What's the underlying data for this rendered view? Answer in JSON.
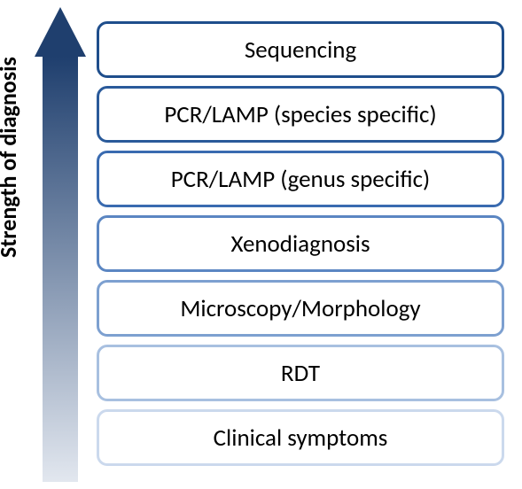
{
  "diagram": {
    "type": "infographic",
    "axis_label": "Strength of diagnosis",
    "axis_font_size": 26,
    "axis_font_weight": "bold",
    "arrow": {
      "head_height": 56,
      "body_height": 480,
      "gradient_top": "#1f3f6e",
      "gradient_bottom": "#e2e7ef"
    },
    "box_font_size": 27,
    "box_font_weight": "400",
    "box_border_width": 3,
    "box_border_radius": 12,
    "boxes": [
      {
        "label": "Sequencing",
        "border_color": "#1f4e8c"
      },
      {
        "label": "PCR/LAMP (species specific)",
        "border_color": "#2a5a9a"
      },
      {
        "label": "PCR/LAMP (genus specific)",
        "border_color": "#3a6bb0"
      },
      {
        "label": "Xenodiagnosis",
        "border_color": "#5b86c2"
      },
      {
        "label": "Microscopy/Morphology",
        "border_color": "#7da0d0"
      },
      {
        "label": "RDT",
        "border_color": "#a8c0e0"
      },
      {
        "label": "Clinical symptoms",
        "border_color": "#cbd9ed"
      }
    ]
  },
  "background_color": "#ffffff"
}
